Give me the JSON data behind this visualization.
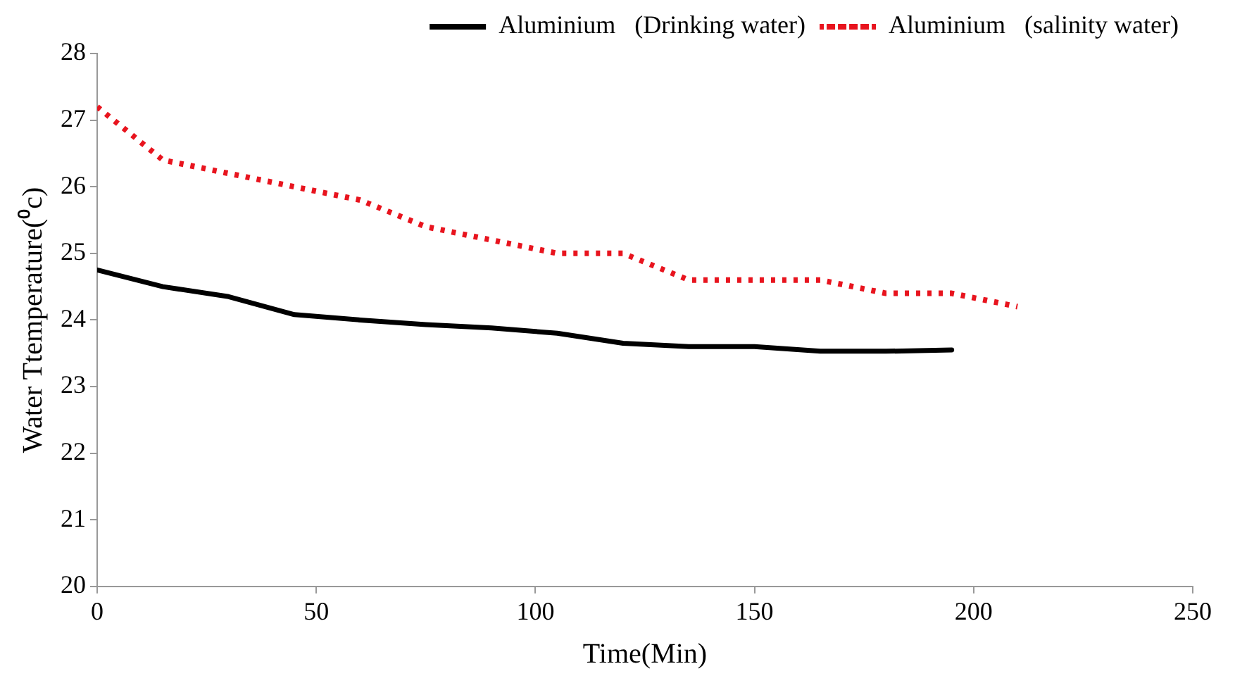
{
  "chart_data": {
    "type": "line",
    "xlabel": "Time(Min)",
    "ylabel": "Water Ttemperature(⁰c)",
    "xlim": [
      0,
      250
    ],
    "xticks": [
      0,
      50,
      100,
      150,
      200,
      250
    ],
    "ylim": [
      20,
      28
    ],
    "yticks": [
      20,
      21,
      22,
      23,
      24,
      25,
      26,
      27,
      28
    ],
    "grid": false,
    "legend": "top",
    "marker": "none",
    "series": [
      {
        "name": "Aluminium   (Drinking water)",
        "color": "#000000",
        "line_style": "solid",
        "x": [
          0,
          15,
          30,
          45,
          60,
          75,
          90,
          105,
          120,
          135,
          150,
          165,
          180,
          195
        ],
        "values": [
          24.75,
          24.5,
          24.35,
          24.08,
          24.0,
          23.93,
          23.88,
          23.8,
          23.65,
          23.6,
          23.6,
          23.53,
          23.53,
          23.55
        ]
      },
      {
        "name": "Aluminium   (salinity water)",
        "color": "#e8141e",
        "line_style": "dotted",
        "x": [
          0,
          15,
          30,
          45,
          60,
          75,
          90,
          105,
          120,
          135,
          150,
          165,
          180,
          195,
          210
        ],
        "values": [
          27.2,
          26.4,
          26.2,
          26.0,
          25.8,
          25.4,
          25.2,
          25.0,
          25.0,
          24.6,
          24.6,
          24.6,
          24.4,
          24.4,
          24.2
        ]
      }
    ]
  }
}
